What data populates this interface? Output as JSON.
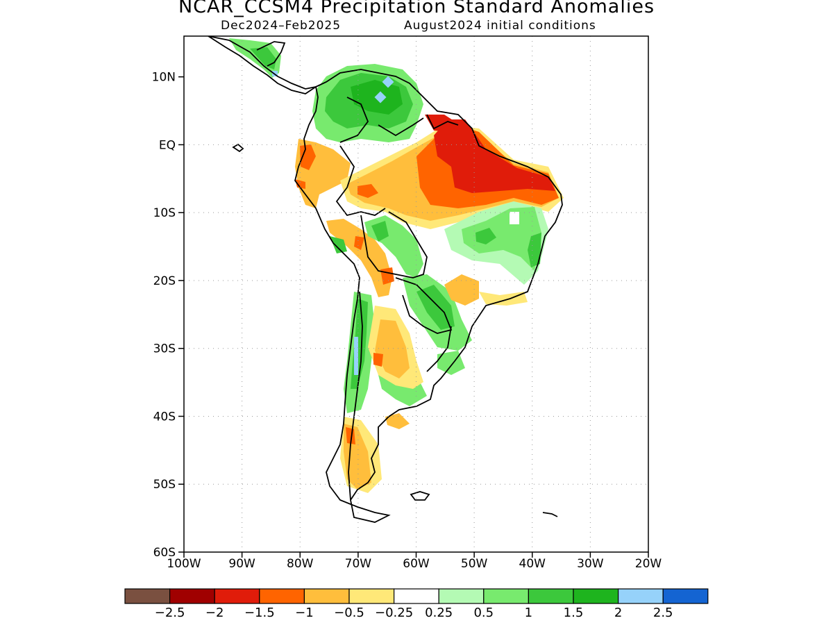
{
  "title": "NCAR_CCSM4 Precipitation Standard Anomalies",
  "subtitle_left": "Dec2024–Feb2025",
  "subtitle_right": "August2024 initial conditions",
  "map": {
    "lon_range": [
      -100,
      -20
    ],
    "lat_range": [
      -60,
      16
    ],
    "y_ticks": [
      {
        "lat": 10,
        "label": "10N"
      },
      {
        "lat": 0,
        "label": "EQ"
      },
      {
        "lat": -10,
        "label": "10S"
      },
      {
        "lat": -20,
        "label": "20S"
      },
      {
        "lat": -30,
        "label": "30S"
      },
      {
        "lat": -40,
        "label": "40S"
      },
      {
        "lat": -50,
        "label": "50S"
      },
      {
        "lat": -60,
        "label": "60S"
      }
    ],
    "x_ticks": [
      {
        "lon": -100,
        "label": "100W"
      },
      {
        "lon": -90,
        "label": "90W"
      },
      {
        "lon": -80,
        "label": "80W"
      },
      {
        "lon": -70,
        "label": "70W"
      },
      {
        "lon": -60,
        "label": "60W"
      },
      {
        "lon": -50,
        "label": "50W"
      },
      {
        "lon": -40,
        "label": "40W"
      },
      {
        "lon": -30,
        "label": "30W"
      },
      {
        "lon": -20,
        "label": "20W"
      }
    ],
    "grid": "dotted",
    "anomaly_regions": [
      {
        "name": "northern-south-america-wet",
        "level": 1.0,
        "color": "#3cc83c"
      },
      {
        "name": "north-brazil-dry",
        "level": -1.5,
        "color": "#e01c0a"
      },
      {
        "name": "amazon-dry",
        "level": -1.0,
        "color": "#ff6400"
      },
      {
        "name": "northeast-brazil-wet",
        "level": 1.0,
        "color": "#78ea6e"
      },
      {
        "name": "bolivia-dry",
        "level": -0.5,
        "color": "#ffbe3c"
      },
      {
        "name": "chile-andes-wet",
        "level": 1.0,
        "color": "#3cc83c"
      },
      {
        "name": "patagonia-dry",
        "level": -0.5,
        "color": "#ffbe3c"
      }
    ]
  },
  "colorbar": {
    "colors": [
      "#7a5040",
      "#a00000",
      "#e01c0a",
      "#ff6400",
      "#ffbe3c",
      "#ffe878",
      "#ffffff",
      "#b4fab4",
      "#78ea6e",
      "#3cc83c",
      "#1eb41e",
      "#96d2fa",
      "#1464d2"
    ],
    "labels": [
      "−2.5",
      "−2",
      "−1.5",
      "−1",
      "−0.5",
      "−0.25",
      "0.25",
      "0.5",
      "1",
      "1.5",
      "2",
      "2.5"
    ]
  }
}
